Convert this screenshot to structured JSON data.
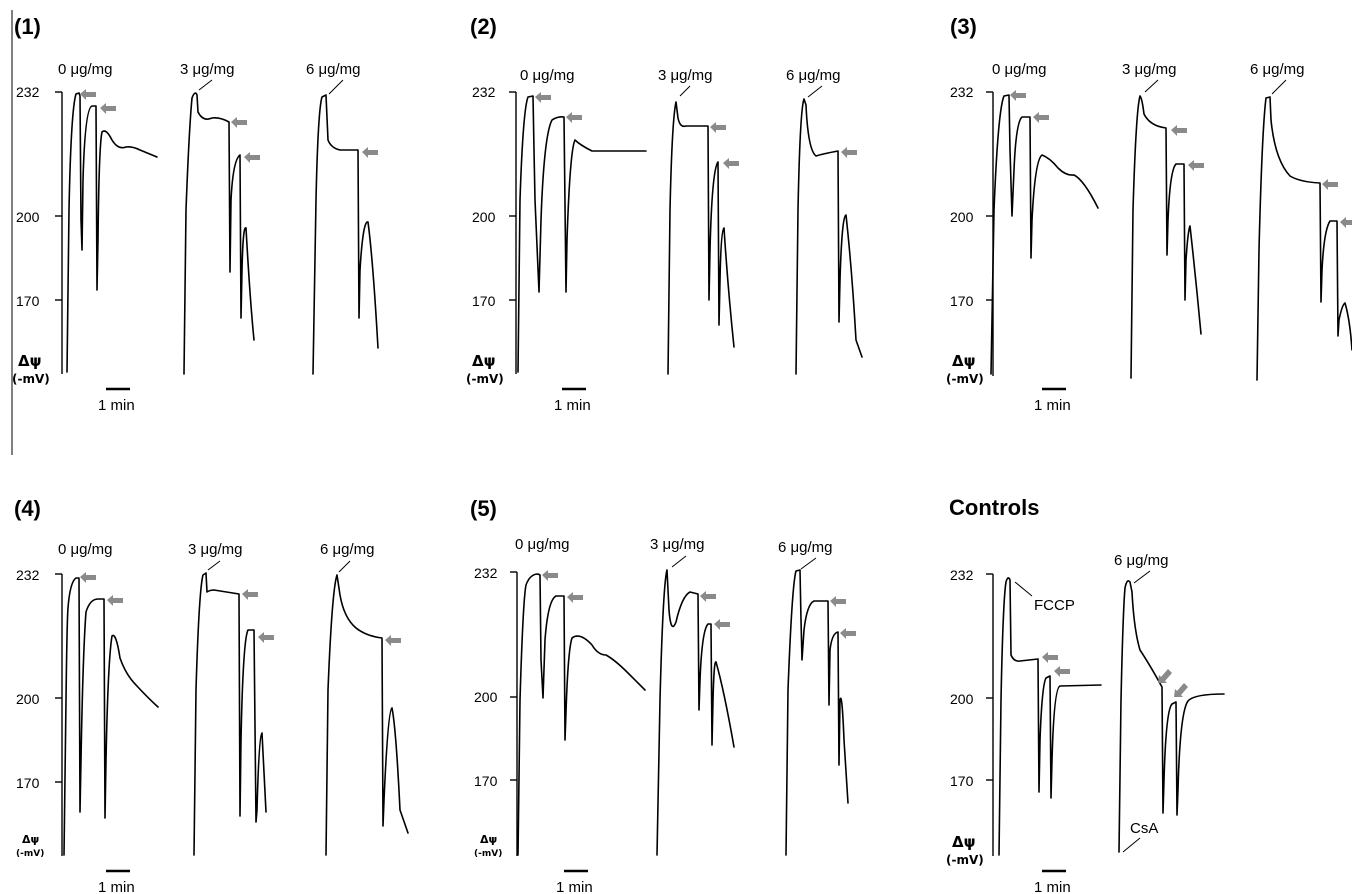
{
  "chart_data": [
    {
      "type": "line",
      "panel": "(1)",
      "ylabel": "Δψ",
      "yunit": "(-mV)",
      "yticks": [
        232,
        200,
        170
      ],
      "ylim": [
        150,
        232
      ],
      "scale_bar": "1 min",
      "series": [
        {
          "name": "0 μg/mg"
        },
        {
          "name": "3 μg/mg"
        },
        {
          "name": "6 μg/mg"
        }
      ]
    },
    {
      "type": "line",
      "panel": "(2)",
      "ylabel": "Δψ",
      "yunit": "(-mV)",
      "yticks": [
        232,
        200,
        170
      ],
      "ylim": [
        150,
        232
      ],
      "scale_bar": "1 min",
      "series": [
        {
          "name": "0 μg/mg"
        },
        {
          "name": "3 μg/mg"
        },
        {
          "name": "6 μg/mg"
        }
      ]
    },
    {
      "type": "line",
      "panel": "(3)",
      "ylabel": "Δψ",
      "yunit": "(-mV)",
      "yticks": [
        232,
        200,
        170
      ],
      "ylim": [
        150,
        232
      ],
      "scale_bar": "1 min",
      "series": [
        {
          "name": "0 μg/mg"
        },
        {
          "name": "3 μg/mg"
        },
        {
          "name": "6 μg/mg"
        }
      ]
    },
    {
      "type": "line",
      "panel": "(4)",
      "ylabel": "Δψ",
      "yunit": "(-mV)",
      "yticks": [
        232,
        200,
        170
      ],
      "ylim": [
        150,
        232
      ],
      "scale_bar": "1 min",
      "series": [
        {
          "name": "0 μg/mg"
        },
        {
          "name": "3 μg/mg"
        },
        {
          "name": "6 μg/mg"
        }
      ]
    },
    {
      "type": "line",
      "panel": "(5)",
      "ylabel": "Δψ",
      "yunit": "(-mV)",
      "yticks": [
        232,
        200,
        170
      ],
      "ylim": [
        150,
        232
      ],
      "scale_bar": "1 min",
      "series": [
        {
          "name": "0 μg/mg"
        },
        {
          "name": "3 μg/mg"
        },
        {
          "name": "6 μg/mg"
        }
      ]
    },
    {
      "type": "line",
      "panel": "Controls",
      "ylabel": "Δψ",
      "yunit": "(-mV)",
      "yticks": [
        232,
        200,
        170
      ],
      "ylim": [
        150,
        232
      ],
      "scale_bar": "1 min",
      "series": [
        {
          "name": ""
        },
        {
          "name": "6 μg/mg"
        }
      ],
      "annotations": [
        "FCCP",
        "CsA"
      ]
    }
  ]
}
